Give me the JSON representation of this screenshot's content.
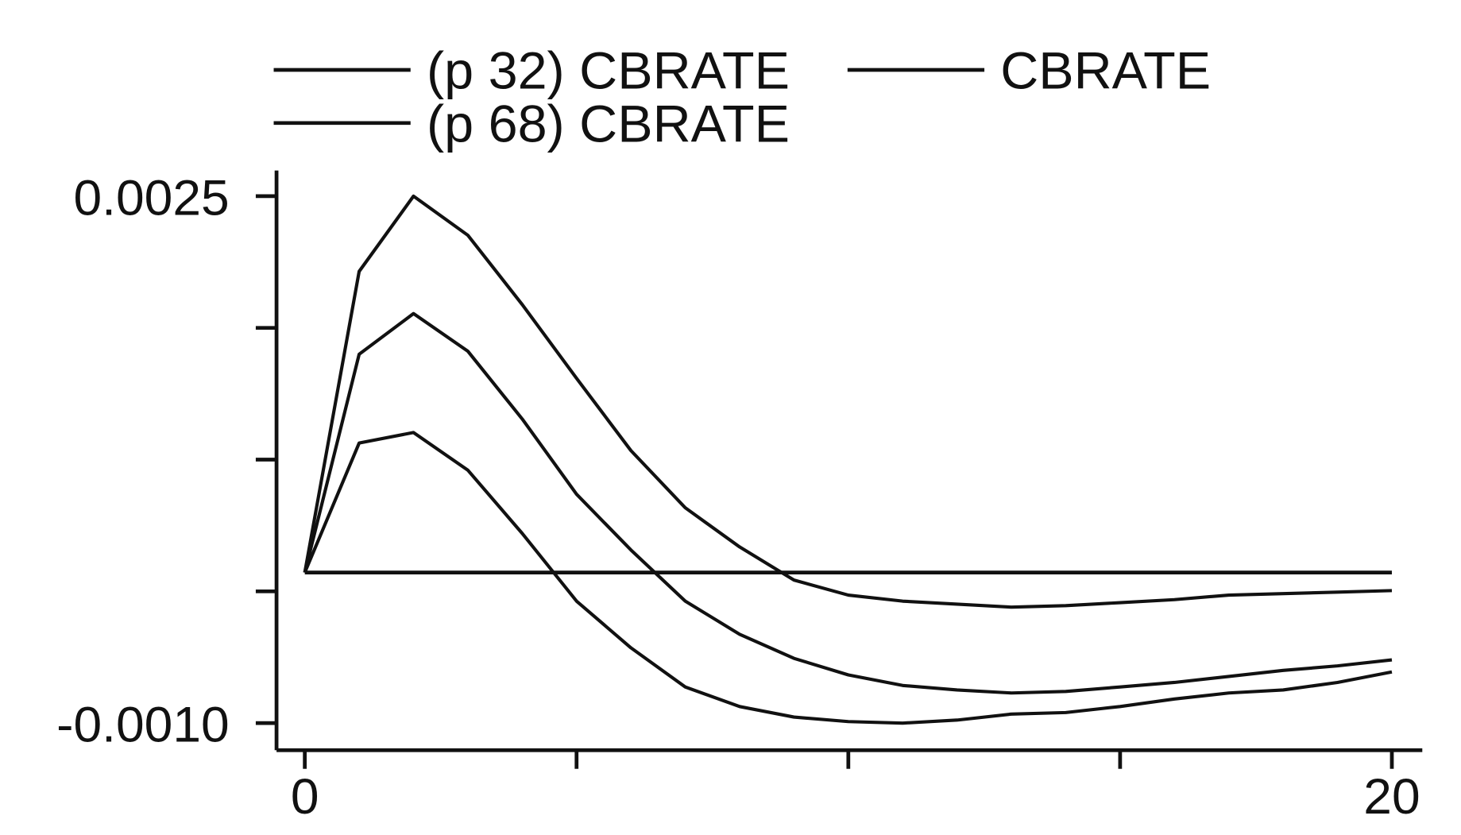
{
  "chart_data": {
    "type": "line",
    "x": [
      0,
      1,
      2,
      3,
      4,
      5,
      6,
      7,
      8,
      9,
      10,
      11,
      12,
      13,
      14,
      15,
      16,
      17,
      18,
      19,
      20
    ],
    "xlim": [
      -0.52,
      20.56
    ],
    "xticks": [
      0,
      20
    ],
    "xminorticks": [
      5,
      10,
      15
    ],
    "ylim": [
      -0.00118,
      0.00267
    ],
    "yticks": [
      {
        "value": 0.0025,
        "label": "0.0025"
      },
      {
        "value": -0.001,
        "label": "-0.0010"
      }
    ],
    "yminorticks": [
      0.001625,
      0.00075,
      -0.000125
    ],
    "zero_line": 0,
    "series": [
      {
        "name": "(p 32) CBRATE",
        "color": "#111111",
        "values": [
          0,
          0.00086,
          0.00093,
          0.00068,
          0.00026,
          -0.00019,
          -0.0005,
          -0.00076,
          -0.00089,
          -0.00096,
          -0.00099,
          -0.001,
          -0.00098,
          -0.00094,
          -0.00093,
          -0.00089,
          -0.00084,
          -0.0008,
          -0.00078,
          -0.00073,
          -0.00066
        ]
      },
      {
        "name": "CBRATE",
        "color": "#111111",
        "values": [
          0,
          0.00145,
          0.00172,
          0.00147,
          0.00102,
          0.00052,
          0.00015,
          -0.00019,
          -0.00041,
          -0.00057,
          -0.00068,
          -0.00075,
          -0.00078,
          -0.0008,
          -0.00079,
          -0.00076,
          -0.00073,
          -0.00069,
          -0.00065,
          -0.00062,
          -0.00058
        ]
      },
      {
        "name": "(p 68) CBRATE",
        "color": "#111111",
        "values": [
          0,
          0.002,
          0.0025,
          0.00224,
          0.00178,
          0.00129,
          0.00081,
          0.00043,
          0.00017,
          -5e-05,
          -0.00015,
          -0.00019,
          -0.00021,
          -0.00023,
          -0.00022,
          -0.0002,
          -0.00018,
          -0.00015,
          -0.00014,
          -0.00013,
          -0.00012
        ]
      }
    ]
  }
}
